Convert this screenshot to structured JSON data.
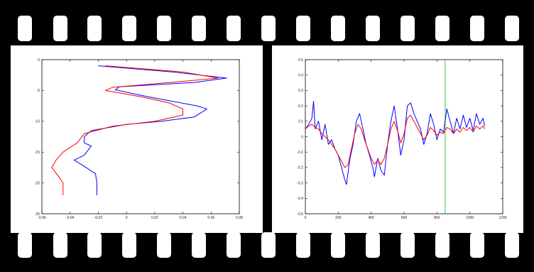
{
  "frame": {
    "background": "#000000",
    "panel_background": "#ffffff"
  },
  "chart_data": [
    {
      "type": "line",
      "title": "",
      "xlabel": "",
      "ylabel": "",
      "xlim": [
        -0.06,
        0.08
      ],
      "ylim": [
        -25,
        0
      ],
      "grid": false,
      "xticks": [
        -0.06,
        -0.04,
        -0.02,
        0,
        0.02,
        0.04,
        0.06,
        0.08
      ],
      "xtick_labels": [
        "-0.06",
        "-0.04",
        "-0.02",
        "0",
        "0.02",
        "0.04",
        "0.06",
        "0.08"
      ],
      "yticks": [
        0,
        -5,
        -10,
        -15,
        -20,
        -25
      ],
      "ytick_labels": [
        "0",
        "-5",
        "-10",
        "-15",
        "-20",
        "-25"
      ],
      "series": [
        {
          "color": "#0000ff",
          "points": [
            [
              -0.02,
              -1
            ],
            [
              0.033,
              -2
            ],
            [
              0.071,
              -3
            ],
            [
              0.048,
              -3.7
            ],
            [
              -0.005,
              -4.4
            ],
            [
              -0.008,
              -4.9
            ],
            [
              0.015,
              -6
            ],
            [
              0.05,
              -7.5
            ],
            [
              0.057,
              -8
            ],
            [
              0.048,
              -9.3
            ],
            [
              0.025,
              -10
            ],
            [
              0.0,
              -10.5
            ],
            [
              -0.025,
              -11.5
            ],
            [
              -0.03,
              -12.5
            ],
            [
              -0.03,
              -13.5
            ],
            [
              -0.025,
              -14
            ],
            [
              -0.03,
              -15.5
            ],
            [
              -0.037,
              -16.3
            ],
            [
              -0.03,
              -17.3
            ],
            [
              -0.022,
              -18.5
            ],
            [
              -0.021,
              -20
            ],
            [
              -0.021,
              -22
            ]
          ]
        },
        {
          "color": "#ff0000",
          "points": [
            [
              -0.015,
              -1
            ],
            [
              0.04,
              -2
            ],
            [
              0.065,
              -3
            ],
            [
              0.036,
              -3.6
            ],
            [
              -0.01,
              -4.5
            ],
            [
              -0.015,
              -5
            ],
            [
              0.01,
              -6
            ],
            [
              0.03,
              -7
            ],
            [
              0.04,
              -8
            ],
            [
              0.04,
              -9
            ],
            [
              0.02,
              -10
            ],
            [
              -0.01,
              -10.8
            ],
            [
              -0.03,
              -12
            ],
            [
              -0.035,
              -13.5
            ],
            [
              -0.045,
              -15
            ],
            [
              -0.05,
              -16.3
            ],
            [
              -0.053,
              -17.5
            ],
            [
              -0.048,
              -19
            ],
            [
              -0.045,
              -20
            ],
            [
              -0.045,
              -22
            ]
          ]
        }
      ]
    },
    {
      "type": "line",
      "title": "",
      "xlabel": "",
      "ylabel": "",
      "xlim": [
        0,
        1200
      ],
      "ylim": [
        -0.5,
        0.5
      ],
      "grid": false,
      "xticks": [
        0,
        200,
        400,
        600,
        800,
        1000,
        1200
      ],
      "xtick_labels": [
        "0",
        "200",
        "400",
        "600",
        "800",
        "1000",
        "1200"
      ],
      "yticks": [
        0.5,
        0.4,
        0.3,
        0.2,
        0.1,
        0,
        -0.1,
        -0.2,
        -0.3,
        -0.4,
        -0.5
      ],
      "ytick_labels": [
        "0.5",
        "0.4",
        "0.3",
        "0.2",
        "0.1",
        "0",
        "-0.1",
        "-0.2",
        "-0.3",
        "-0.4",
        "-0.5"
      ],
      "vertical_marker": {
        "x": 850,
        "color": "#00cc00"
      },
      "series": [
        {
          "color": "#0000ff",
          "points": [
            [
              0,
              0.05
            ],
            [
              20,
              0.08
            ],
            [
              40,
              0.12
            ],
            [
              50,
              0.23
            ],
            [
              60,
              0.05
            ],
            [
              80,
              0.1
            ],
            [
              100,
              -0.02
            ],
            [
              120,
              0.08
            ],
            [
              140,
              -0.05
            ],
            [
              160,
              -0.02
            ],
            [
              180,
              -0.08
            ],
            [
              200,
              -0.12
            ],
            [
              220,
              -0.2
            ],
            [
              240,
              -0.28
            ],
            [
              250,
              -0.31
            ],
            [
              270,
              -0.15
            ],
            [
              290,
              -0.05
            ],
            [
              310,
              0.1
            ],
            [
              330,
              0.15
            ],
            [
              350,
              0.05
            ],
            [
              370,
              -0.05
            ],
            [
              390,
              -0.12
            ],
            [
              410,
              -0.2
            ],
            [
              420,
              -0.26
            ],
            [
              440,
              -0.14
            ],
            [
              460,
              -0.22
            ],
            [
              480,
              -0.25
            ],
            [
              500,
              -0.05
            ],
            [
              520,
              0.1
            ],
            [
              540,
              0.2
            ],
            [
              560,
              0.05
            ],
            [
              580,
              -0.12
            ],
            [
              600,
              -0.02
            ],
            [
              620,
              0.2
            ],
            [
              640,
              0.22
            ],
            [
              660,
              0.15
            ],
            [
              680,
              0.1
            ],
            [
              700,
              0.05
            ],
            [
              720,
              -0.05
            ],
            [
              740,
              0.02
            ],
            [
              760,
              0.15
            ],
            [
              780,
              0.08
            ],
            [
              800,
              -0.02
            ],
            [
              820,
              0.05
            ],
            [
              840,
              0.03
            ],
            [
              860,
              0.18
            ],
            [
              880,
              0.1
            ],
            [
              900,
              0.02
            ],
            [
              920,
              0.12
            ],
            [
              940,
              0.05
            ],
            [
              960,
              0.14
            ],
            [
              980,
              0.06
            ],
            [
              1000,
              0.12
            ],
            [
              1020,
              0.04
            ],
            [
              1040,
              0.15
            ],
            [
              1060,
              0.08
            ],
            [
              1080,
              0.12
            ],
            [
              1090,
              0.07
            ]
          ]
        },
        {
          "color": "#ff0000",
          "points": [
            [
              0,
              0.05
            ],
            [
              20,
              0.07
            ],
            [
              40,
              0.08
            ],
            [
              60,
              0.06
            ],
            [
              80,
              0.05
            ],
            [
              100,
              0.02
            ],
            [
              120,
              0.0
            ],
            [
              140,
              -0.02
            ],
            [
              160,
              -0.05
            ],
            [
              180,
              -0.08
            ],
            [
              200,
              -0.12
            ],
            [
              220,
              -0.16
            ],
            [
              240,
              -0.2
            ],
            [
              260,
              -0.18
            ],
            [
              280,
              -0.08
            ],
            [
              300,
              0.02
            ],
            [
              320,
              0.08
            ],
            [
              340,
              0.05
            ],
            [
              360,
              -0.02
            ],
            [
              380,
              -0.08
            ],
            [
              400,
              -0.14
            ],
            [
              420,
              -0.18
            ],
            [
              440,
              -0.15
            ],
            [
              460,
              -0.18
            ],
            [
              480,
              -0.14
            ],
            [
              500,
              -0.05
            ],
            [
              520,
              0.05
            ],
            [
              540,
              0.1
            ],
            [
              560,
              0.04
            ],
            [
              580,
              -0.04
            ],
            [
              600,
              0.02
            ],
            [
              620,
              0.12
            ],
            [
              640,
              0.14
            ],
            [
              660,
              0.1
            ],
            [
              680,
              0.06
            ],
            [
              700,
              0.02
            ],
            [
              720,
              -0.02
            ],
            [
              740,
              0.01
            ],
            [
              760,
              0.06
            ],
            [
              780,
              0.04
            ],
            [
              800,
              0.01
            ],
            [
              820,
              0.03
            ],
            [
              840,
              0.02
            ],
            [
              860,
              0.06
            ],
            [
              880,
              0.05
            ],
            [
              900,
              0.02
            ],
            [
              920,
              0.05
            ],
            [
              940,
              0.03
            ],
            [
              960,
              0.06
            ],
            [
              980,
              0.04
            ],
            [
              1000,
              0.06
            ],
            [
              1020,
              0.03
            ],
            [
              1040,
              0.07
            ],
            [
              1060,
              0.05
            ],
            [
              1080,
              0.07
            ],
            [
              1090,
              0.05
            ]
          ]
        }
      ]
    }
  ]
}
